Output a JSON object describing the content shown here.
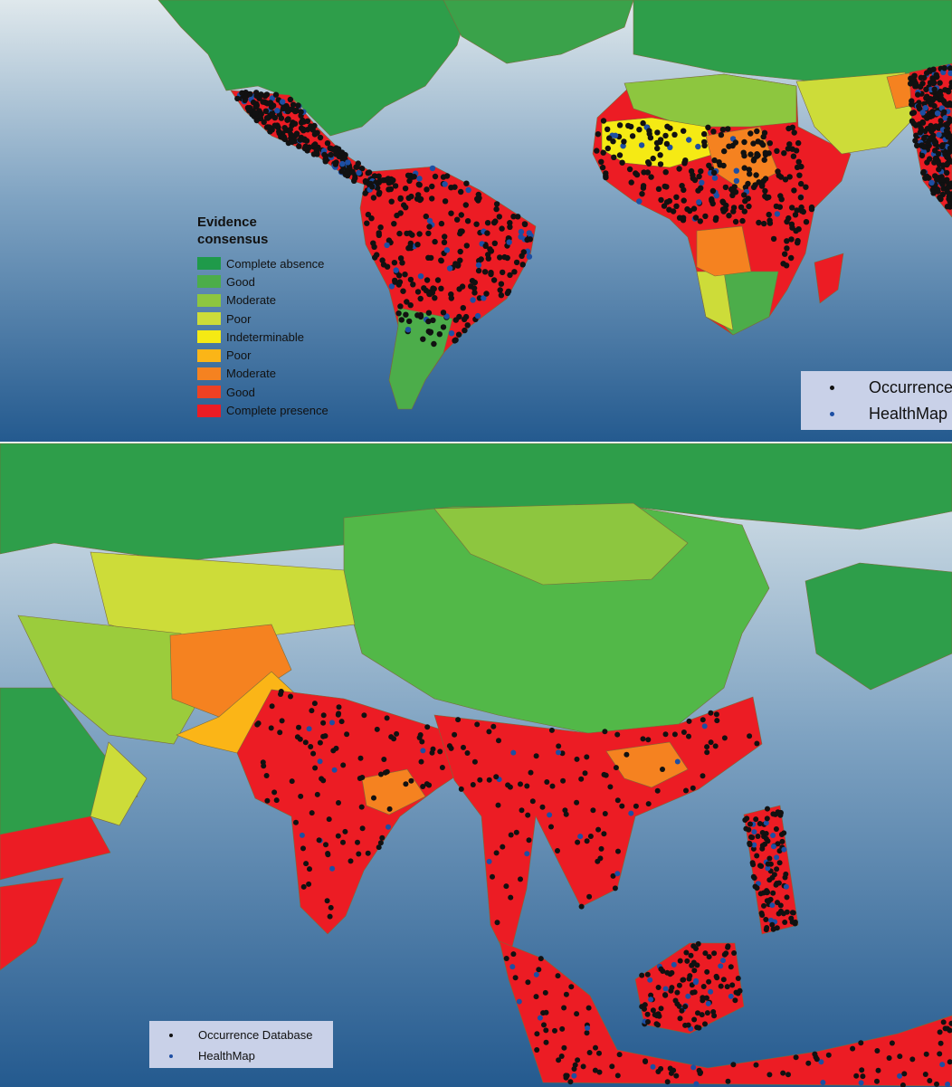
{
  "legend": {
    "title": "Evidence consensus",
    "items": [
      {
        "label": "Complete absence",
        "color": "#1f9a4a"
      },
      {
        "label": "Good",
        "color": "#4cad4a"
      },
      {
        "label": "Moderate",
        "color": "#8dc63f"
      },
      {
        "label": "Poor",
        "color": "#cddc39"
      },
      {
        "label": "Indeterminable",
        "color": "#f5ea14"
      },
      {
        "label": "Poor",
        "color": "#fbb517"
      },
      {
        "label": "Moderate",
        "color": "#f58220"
      },
      {
        "label": "Good",
        "color": "#ee4123"
      },
      {
        "label": "Complete presence",
        "color": "#ec1c24"
      }
    ]
  },
  "top_points_legend": {
    "items": [
      {
        "label": "Occurrence",
        "color": "#111111"
      },
      {
        "label": "HealthMap",
        "color": "#1d4fa3"
      }
    ]
  },
  "bottom_points_legend": {
    "items": [
      {
        "label": "Occurrence Database",
        "color": "#111111"
      },
      {
        "label": "HealthMap",
        "color": "#1d4fa3"
      }
    ]
  }
}
